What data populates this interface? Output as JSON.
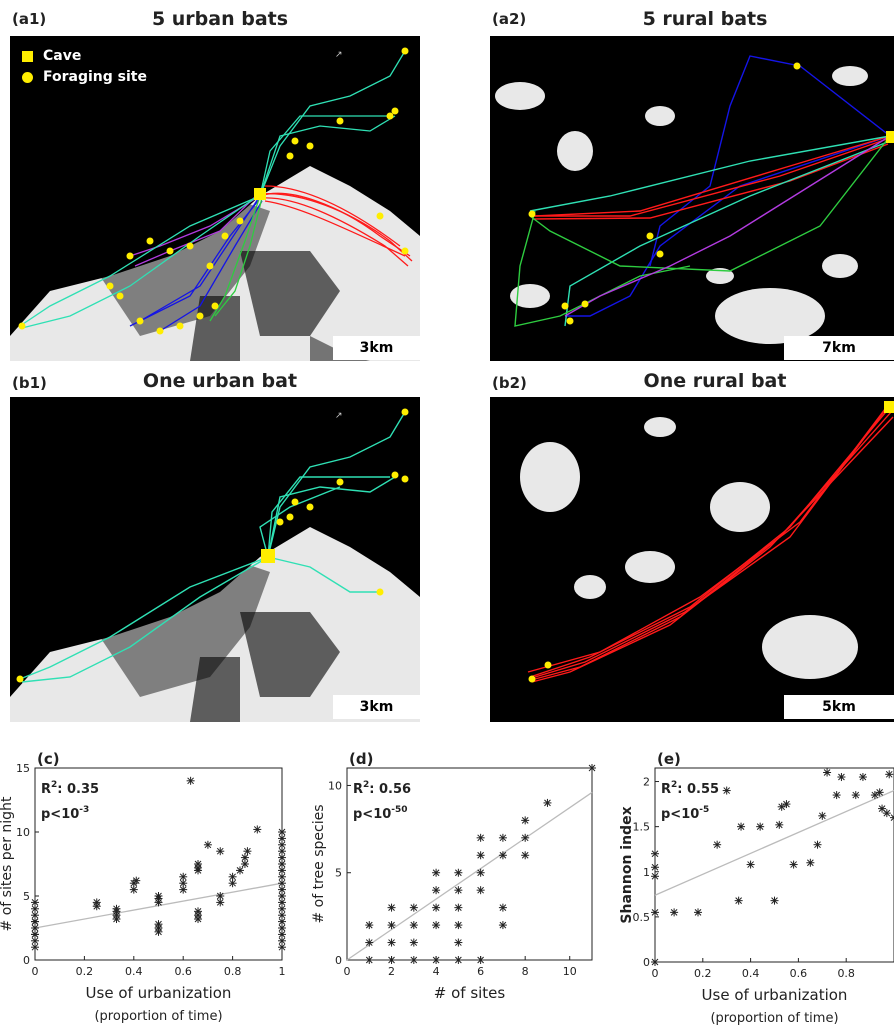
{
  "top": {
    "a1": {
      "label": "(a1)",
      "title": "5 urban bats",
      "scale": "3km",
      "legend": {
        "cave": "Cave",
        "foraging": "Foraging site"
      }
    },
    "a2": {
      "label": "(a2)",
      "title": "5 rural bats",
      "scale": "7km"
    },
    "b1": {
      "label": "(b1)",
      "title": "One urban bat",
      "scale": "3km"
    },
    "b2": {
      "label": "(b2)",
      "title": "One rural bat",
      "scale": "5km"
    }
  },
  "colors": {
    "track_cyan": "#2fe0b4",
    "track_red": "#ff1a1a",
    "track_blue": "#1414e6",
    "track_green": "#2ecc40",
    "track_purple": "#b23be0",
    "marker": "#ffee00",
    "map_bg": "#000000",
    "urban": "#ffffff",
    "fit_line": "#bbbbbb"
  },
  "chart_data": [
    {
      "type": "scatter",
      "panel_label": "(c)",
      "title": "",
      "xlabel": "Use of urbanization",
      "xlabel2": "(proportion of time)",
      "ylabel": "# of sites per night",
      "xlim": [
        0,
        1
      ],
      "ylim": [
        0,
        15
      ],
      "xticks": [
        0,
        0.2,
        0.4,
        0.6,
        0.8,
        1
      ],
      "xtick_labels": [
        "0",
        "0.2",
        "0.4",
        "0.6",
        "0.8",
        "1"
      ],
      "yticks": [
        0,
        5,
        10,
        15
      ],
      "ytick_labels": [
        "0",
        "5",
        "10",
        "15"
      ],
      "annotation": {
        "r2_label": "R",
        "r2_sup": "2",
        "r2_value": ": 0.35",
        "p_text": "p<10",
        "p_exp": "-3"
      },
      "fit": {
        "x": [
          0,
          1
        ],
        "y": [
          2.5,
          6.0
        ]
      },
      "points": [
        [
          0,
          1
        ],
        [
          0,
          1.5
        ],
        [
          0,
          2
        ],
        [
          0,
          2.5
        ],
        [
          0,
          3
        ],
        [
          0,
          3.5
        ],
        [
          0,
          4
        ],
        [
          0,
          4.5
        ],
        [
          0,
          2
        ],
        [
          0,
          3
        ],
        [
          0.25,
          4.2
        ],
        [
          0.25,
          4.5
        ],
        [
          0.33,
          3.5
        ],
        [
          0.33,
          3.8
        ],
        [
          0.33,
          4
        ],
        [
          0.33,
          3.2
        ],
        [
          0.4,
          5.5
        ],
        [
          0.4,
          6
        ],
        [
          0.41,
          6.2
        ],
        [
          0.5,
          2.2
        ],
        [
          0.5,
          2.5
        ],
        [
          0.5,
          2.8
        ],
        [
          0.5,
          4.5
        ],
        [
          0.5,
          4.8
        ],
        [
          0.5,
          5
        ],
        [
          0.6,
          5.5
        ],
        [
          0.6,
          6
        ],
        [
          0.6,
          6.5
        ],
        [
          0.63,
          14
        ],
        [
          0.66,
          3.2
        ],
        [
          0.66,
          3.5
        ],
        [
          0.66,
          3.8
        ],
        [
          0.66,
          7
        ],
        [
          0.66,
          7.2
        ],
        [
          0.66,
          7.5
        ],
        [
          0.7,
          9
        ],
        [
          0.75,
          4.5
        ],
        [
          0.75,
          5
        ],
        [
          0.75,
          8.5
        ],
        [
          0.8,
          6
        ],
        [
          0.8,
          6.5
        ],
        [
          0.83,
          7
        ],
        [
          0.85,
          7.5
        ],
        [
          0.85,
          8
        ],
        [
          0.86,
          8.5
        ],
        [
          0.9,
          10.2
        ],
        [
          1,
          1
        ],
        [
          1,
          1.5
        ],
        [
          1,
          2
        ],
        [
          1,
          2.5
        ],
        [
          1,
          3
        ],
        [
          1,
          3.5
        ],
        [
          1,
          4
        ],
        [
          1,
          4.5
        ],
        [
          1,
          5
        ],
        [
          1,
          5.5
        ],
        [
          1,
          6
        ],
        [
          1,
          6.5
        ],
        [
          1,
          7
        ],
        [
          1,
          7.5
        ],
        [
          1,
          8
        ],
        [
          1,
          8.5
        ],
        [
          1,
          9
        ],
        [
          1,
          9.5
        ],
        [
          1,
          10
        ]
      ]
    },
    {
      "type": "scatter",
      "panel_label": "(d)",
      "title": "",
      "xlabel": "# of sites",
      "xlabel2": "",
      "ylabel": "# of tree species",
      "xlim": [
        0,
        11
      ],
      "ylim": [
        0,
        11
      ],
      "xticks": [
        0,
        2,
        4,
        6,
        8,
        10
      ],
      "xtick_labels": [
        "0",
        "2",
        "4",
        "6",
        "8",
        "10"
      ],
      "yticks": [
        0,
        5,
        10
      ],
      "ytick_labels": [
        "0",
        "5",
        "10"
      ],
      "annotation": {
        "r2_label": "R",
        "r2_sup": "2",
        "r2_value": ": 0.56",
        "p_text": "p<10",
        "p_exp": "-50"
      },
      "fit": {
        "x": [
          0,
          11
        ],
        "y": [
          0,
          9.6
        ]
      },
      "points": [
        [
          1,
          0
        ],
        [
          1,
          1
        ],
        [
          1,
          2
        ],
        [
          2,
          0
        ],
        [
          2,
          1
        ],
        [
          2,
          2
        ],
        [
          2,
          3
        ],
        [
          3,
          0
        ],
        [
          3,
          1
        ],
        [
          3,
          2
        ],
        [
          3,
          3
        ],
        [
          4,
          0
        ],
        [
          4,
          2
        ],
        [
          4,
          3
        ],
        [
          4,
          4
        ],
        [
          4,
          5
        ],
        [
          5,
          0
        ],
        [
          5,
          1
        ],
        [
          5,
          2
        ],
        [
          5,
          3
        ],
        [
          5,
          4
        ],
        [
          5,
          5
        ],
        [
          6,
          0
        ],
        [
          6,
          4
        ],
        [
          6,
          5
        ],
        [
          6,
          6
        ],
        [
          6,
          7
        ],
        [
          7,
          2
        ],
        [
          7,
          3
        ],
        [
          7,
          6
        ],
        [
          7,
          7
        ],
        [
          8,
          6
        ],
        [
          8,
          7
        ],
        [
          8,
          8
        ],
        [
          9,
          9
        ],
        [
          11,
          11
        ]
      ]
    },
    {
      "type": "scatter",
      "panel_label": "(e)",
      "title": "",
      "xlabel": "Use of urbanization",
      "xlabel2": "(proportion of time)",
      "ylabel": "Shannon index",
      "xlim": [
        0,
        1
      ],
      "ylim": [
        0,
        2.15
      ],
      "xticks": [
        0,
        0.2,
        0.4,
        0.6,
        0.8
      ],
      "xtick_labels": [
        "0",
        "0.2",
        "0.4",
        "0.6",
        "0.8"
      ],
      "yticks": [
        0,
        0.5,
        1,
        1.5,
        2
      ],
      "ytick_labels": [
        "0",
        "0.5",
        "1",
        "1.5",
        "2"
      ],
      "annotation": {
        "r2_label": "R",
        "r2_sup": "2",
        "r2_value": ": 0.55",
        "p_text": "p<10",
        "p_exp": "-5"
      },
      "fit": {
        "x": [
          0,
          1
        ],
        "y": [
          0.74,
          1.9
        ]
      },
      "points": [
        [
          0,
          0
        ],
        [
          0,
          0.55
        ],
        [
          0,
          0.95
        ],
        [
          0,
          1.05
        ],
        [
          0,
          1.2
        ],
        [
          0.08,
          0.55
        ],
        [
          0.18,
          0.55
        ],
        [
          0.26,
          1.3
        ],
        [
          0.3,
          1.9
        ],
        [
          0.35,
          0.68
        ],
        [
          0.36,
          1.5
        ],
        [
          0.4,
          1.08
        ],
        [
          0.44,
          1.5
        ],
        [
          0.5,
          0.68
        ],
        [
          0.52,
          1.52
        ],
        [
          0.53,
          1.72
        ],
        [
          0.55,
          1.75
        ],
        [
          0.58,
          1.08
        ],
        [
          0.65,
          1.1
        ],
        [
          0.68,
          1.3
        ],
        [
          0.7,
          1.62
        ],
        [
          0.72,
          2.1
        ],
        [
          0.76,
          1.85
        ],
        [
          0.78,
          2.05
        ],
        [
          0.84,
          1.85
        ],
        [
          0.87,
          2.05
        ],
        [
          0.92,
          1.85
        ],
        [
          0.94,
          1.88
        ],
        [
          0.95,
          1.7
        ],
        [
          0.97,
          1.65
        ],
        [
          0.98,
          2.08
        ],
        [
          1,
          1.6
        ]
      ]
    }
  ]
}
